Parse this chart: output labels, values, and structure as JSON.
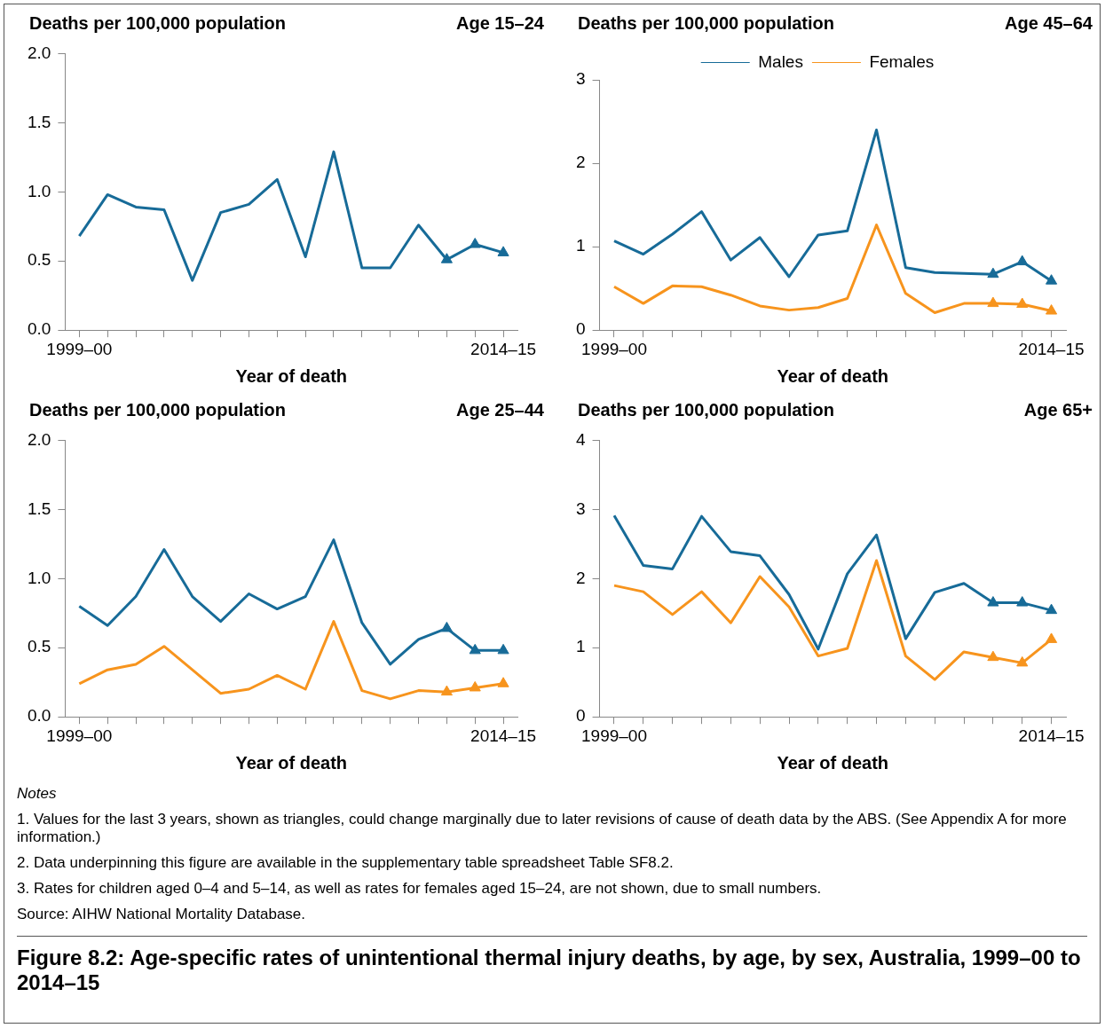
{
  "chart_data": [
    {
      "type": "line",
      "title": "Age 15–24",
      "ylabel": "Deaths per 100,000 population",
      "xlabel": "Year of death",
      "categories": [
        "1999–00",
        null,
        null,
        null,
        null,
        null,
        null,
        null,
        null,
        null,
        null,
        null,
        null,
        null,
        null,
        "2014–15"
      ],
      "ylim": [
        0,
        2
      ],
      "yticks": [
        {
          "value": 0,
          "label": "0.0"
        },
        {
          "value": 0.5,
          "label": "0.5"
        },
        {
          "value": 1,
          "label": "1.0"
        },
        {
          "value": 1.5,
          "label": "1.5"
        },
        {
          "value": 2,
          "label": "2.0"
        }
      ],
      "series": [
        {
          "color": "#176b98",
          "values": [
            0.68,
            0.98,
            0.89,
            0.87,
            0.36,
            0.85,
            0.91,
            1.09,
            0.53,
            1.29,
            0.45,
            0.45,
            0.76,
            0.51,
            null,
            null
          ]
        },
        {
          "color": "#176b98",
          "marker": "triangle",
          "values": [
            null,
            null,
            null,
            null,
            null,
            null,
            null,
            null,
            null,
            null,
            null,
            null,
            null,
            0.51,
            0.62,
            0.56
          ]
        }
      ]
    },
    {
      "type": "line",
      "title": "Age 45–64",
      "ylabel": "Deaths per 100,000 population",
      "xlabel": "Year of death",
      "legend": "top",
      "categories": [
        "1999–00",
        null,
        null,
        null,
        null,
        null,
        null,
        null,
        null,
        null,
        null,
        null,
        null,
        null,
        null,
        "2014–15"
      ],
      "ylim": [
        0,
        3
      ],
      "yticks": [
        0,
        1,
        2,
        3
      ],
      "series": [
        {
          "name": "Males",
          "color": "#176b98",
          "values": [
            1.07,
            0.91,
            1.15,
            1.42,
            0.84,
            1.11,
            0.64,
            1.14,
            1.19,
            2.4,
            0.75,
            0.69,
            0.68,
            0.67,
            null,
            null
          ]
        },
        {
          "name": "Females",
          "color": "#f7941d",
          "values": [
            0.52,
            0.32,
            0.53,
            0.52,
            0.42,
            0.29,
            0.24,
            0.27,
            0.38,
            1.26,
            0.44,
            0.21,
            0.32,
            0.32,
            null,
            null
          ]
        },
        {
          "color": "#176b98",
          "marker": "triangle",
          "values": [
            null,
            null,
            null,
            null,
            null,
            null,
            null,
            null,
            null,
            null,
            null,
            null,
            null,
            0.67,
            0.82,
            0.59
          ]
        },
        {
          "color": "#f7941d",
          "marker": "triangle",
          "values": [
            null,
            null,
            null,
            null,
            null,
            null,
            null,
            null,
            null,
            null,
            null,
            null,
            null,
            0.32,
            0.31,
            0.23
          ]
        }
      ]
    },
    {
      "type": "line",
      "title": "Age 25–44",
      "ylabel": "Deaths per 100,000 population",
      "xlabel": "Year of death",
      "categories": [
        "1999–00",
        null,
        null,
        null,
        null,
        null,
        null,
        null,
        null,
        null,
        null,
        null,
        null,
        null,
        null,
        "2014–15"
      ],
      "ylim": [
        0,
        2
      ],
      "yticks": [
        {
          "value": 0,
          "label": "0.0"
        },
        {
          "value": 0.5,
          "label": "0.5"
        },
        {
          "value": 1,
          "label": "1.0"
        },
        {
          "value": 1.5,
          "label": "1.5"
        },
        {
          "value": 2,
          "label": "2.0"
        }
      ],
      "series": [
        {
          "color": "#176b98",
          "values": [
            0.8,
            0.66,
            0.87,
            1.21,
            0.87,
            0.69,
            0.89,
            0.78,
            0.87,
            1.28,
            0.68,
            0.38,
            0.56,
            0.64,
            null,
            null
          ]
        },
        {
          "color": "#f7941d",
          "values": [
            0.24,
            0.34,
            0.38,
            0.51,
            0.34,
            0.17,
            0.2,
            0.3,
            0.2,
            0.69,
            0.19,
            0.13,
            0.19,
            0.18,
            null,
            null
          ]
        },
        {
          "color": "#176b98",
          "marker": "triangle",
          "values": [
            null,
            null,
            null,
            null,
            null,
            null,
            null,
            null,
            null,
            null,
            null,
            null,
            null,
            0.64,
            0.48,
            0.48
          ]
        },
        {
          "color": "#f7941d",
          "marker": "triangle",
          "values": [
            null,
            null,
            null,
            null,
            null,
            null,
            null,
            null,
            null,
            null,
            null,
            null,
            null,
            0.18,
            0.21,
            0.24
          ]
        }
      ]
    },
    {
      "type": "line",
      "title": "Age 65+",
      "ylabel": "Deaths per 100,000 population",
      "xlabel": "Year of death",
      "categories": [
        "1999–00",
        null,
        null,
        null,
        null,
        null,
        null,
        null,
        null,
        null,
        null,
        null,
        null,
        null,
        null,
        "2014–15"
      ],
      "ylim": [
        0,
        4
      ],
      "yticks": [
        0,
        1,
        2,
        3,
        4
      ],
      "series": [
        {
          "color": "#176b98",
          "values": [
            2.91,
            2.19,
            2.14,
            2.9,
            2.39,
            2.33,
            1.77,
            0.98,
            2.07,
            2.63,
            1.13,
            1.8,
            1.93,
            1.65,
            null,
            null
          ]
        },
        {
          "color": "#f7941d",
          "values": [
            1.9,
            1.81,
            1.48,
            1.81,
            1.36,
            2.03,
            1.59,
            0.88,
            0.99,
            2.26,
            0.88,
            0.54,
            0.94,
            0.86,
            null,
            null
          ]
        },
        {
          "color": "#176b98",
          "marker": "triangle",
          "values": [
            null,
            null,
            null,
            null,
            null,
            null,
            null,
            null,
            null,
            null,
            null,
            null,
            null,
            1.65,
            1.65,
            1.54
          ]
        },
        {
          "color": "#f7941d",
          "marker": "triangle",
          "values": [
            null,
            null,
            null,
            null,
            null,
            null,
            null,
            null,
            null,
            null,
            null,
            null,
            null,
            0.86,
            0.78,
            1.12
          ]
        }
      ]
    },
    {
      "type": "other",
      "title": "Figure 8.2: Age-specific rates of unintentional thermal injury deaths, by age, by sex, Australia, 1999–00 to 2014–15",
      "annotations": [
        "Notes",
        "1. Values for the last 3 years, shown as triangles, could change marginally due to later revisions of cause of death data by the ABS. (See Appendix A for more information.)",
        "2. Data underpinning this figure are available in the supplementary table spreadsheet Table SF8.2.",
        "3. Rates for children aged 0–4 and 5–14, as well as rates for females aged 15–24, are not shown, due to small numbers.",
        "Source: AIHW National Mortality Database."
      ]
    }
  ]
}
